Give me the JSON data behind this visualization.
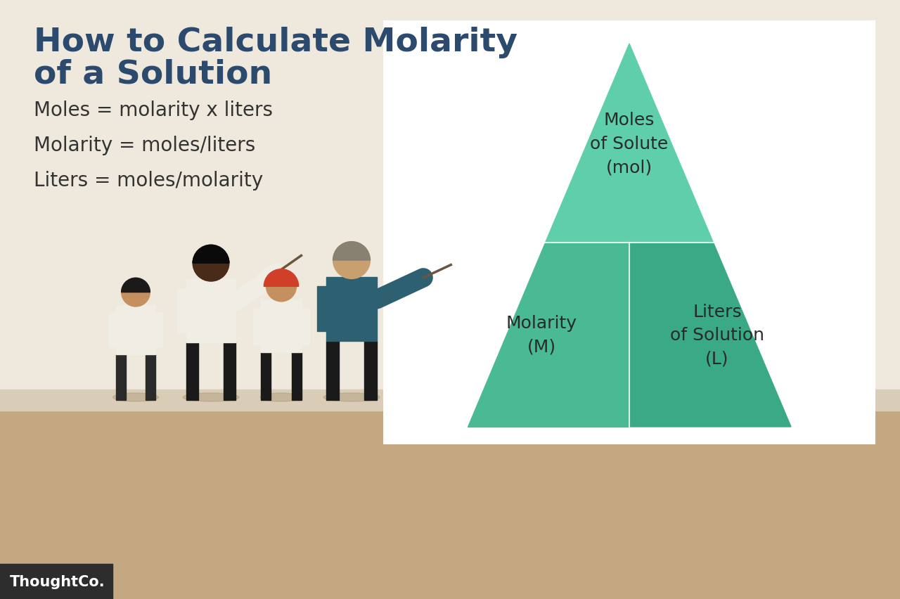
{
  "title_line1": "How to Calculate Molarity",
  "title_line2": "of a Solution",
  "title_color": "#2c4a6e",
  "formula1": "Moles = molarity x liters",
  "formula2": "Molarity = moles/liters",
  "formula3": "Liters = moles/molarity",
  "formula_color": "#333333",
  "formula_fontsize": 20,
  "bg_wall_color": "#eee9dc",
  "bg_floor_color": "#c4a882",
  "floor_junction_color": "#d9cdb8",
  "white_panel_color": "#ffffff",
  "tri_top_color": "#5ecfaa",
  "tri_bot_left_color": "#4aba95",
  "tri_bot_right_color": "#3aaa86",
  "text_top": "Moles\nof Solute\n(mol)",
  "text_bot_left": "Molarity\n(M)",
  "text_bot_right": "Liters\nof Solution\n(L)",
  "tri_text_color": "#2a2a2a",
  "tri_text_fontsize": 18,
  "thoughtco_bg": "#2d2d2d",
  "thoughtco_text": "#ffffff",
  "thoughtco_label": "ThoughtCo.",
  "title_fontsize": 34,
  "shadow_color": "#a8926e"
}
